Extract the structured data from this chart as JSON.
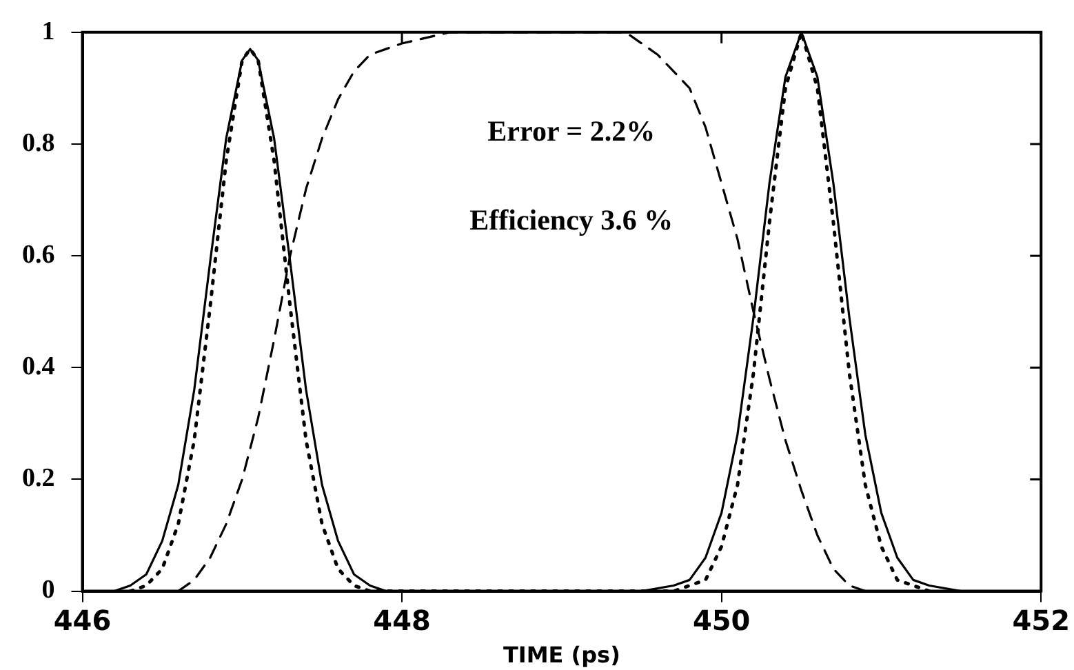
{
  "chart_data": {
    "type": "line",
    "xlabel": "TIME (ps)",
    "xlim": [
      446,
      452
    ],
    "xticks": [
      446,
      448,
      450,
      452
    ],
    "ylim": [
      0,
      1
    ],
    "yticks": [
      0,
      0.2,
      0.4,
      0.6,
      0.8,
      1
    ],
    "grid": false,
    "legend": false,
    "marker": "none",
    "annotations": [
      "Error = 2.2%",
      "Efficiency 3.6 %"
    ],
    "series": [
      {
        "color": "#000000",
        "line_style": "solid",
        "x": [
          446.2,
          446.3,
          446.4,
          446.5,
          446.6,
          446.7,
          446.8,
          446.9,
          447.0,
          447.05,
          447.1,
          447.2,
          447.3,
          447.4,
          447.5,
          447.6,
          447.7,
          447.8,
          447.9,
          448.0,
          449.5,
          449.7,
          449.8,
          449.9,
          450.0,
          450.1,
          450.2,
          450.3,
          450.4,
          450.5,
          450.6,
          450.7,
          450.8,
          450.9,
          451.0,
          451.1,
          451.2,
          451.3,
          451.5
        ],
        "values": [
          0,
          0.01,
          0.03,
          0.09,
          0.19,
          0.36,
          0.59,
          0.81,
          0.95,
          0.97,
          0.95,
          0.81,
          0.59,
          0.36,
          0.19,
          0.09,
          0.03,
          0.01,
          0,
          0,
          0,
          0.01,
          0.02,
          0.06,
          0.14,
          0.28,
          0.49,
          0.73,
          0.92,
          1,
          0.92,
          0.73,
          0.49,
          0.28,
          0.14,
          0.06,
          0.02,
          0.01,
          0
        ]
      },
      {
        "color": "#000000",
        "line_style": "dotted",
        "x": [
          446.3,
          446.4,
          446.5,
          446.6,
          446.7,
          446.8,
          446.9,
          447.0,
          447.05,
          447.1,
          447.2,
          447.3,
          447.4,
          447.5,
          447.6,
          447.7,
          447.8,
          449.7,
          449.8,
          449.9,
          450.0,
          450.1,
          450.2,
          450.3,
          450.4,
          450.5,
          450.6,
          450.7,
          450.8,
          450.9,
          451.0,
          451.1,
          451.2,
          451.3
        ],
        "values": [
          0,
          0.01,
          0.04,
          0.12,
          0.27,
          0.51,
          0.77,
          0.95,
          0.97,
          0.95,
          0.77,
          0.51,
          0.27,
          0.12,
          0.04,
          0.01,
          0,
          0,
          0.01,
          0.02,
          0.08,
          0.19,
          0.39,
          0.66,
          0.9,
          1,
          0.9,
          0.66,
          0.39,
          0.19,
          0.08,
          0.02,
          0.01,
          0
        ]
      },
      {
        "color": "#000000",
        "line_style": "dashed",
        "x": [
          446.6,
          446.7,
          446.8,
          446.9,
          447.0,
          447.1,
          447.2,
          447.3,
          447.4,
          447.5,
          447.6,
          447.7,
          447.8,
          448.0,
          448.3,
          449.4,
          449.6,
          449.8,
          449.9,
          450.0,
          450.1,
          450.2,
          450.3,
          450.4,
          450.5,
          450.6,
          450.7,
          450.8,
          450.9
        ],
        "values": [
          0,
          0.02,
          0.06,
          0.12,
          0.2,
          0.31,
          0.45,
          0.6,
          0.72,
          0.81,
          0.88,
          0.93,
          0.96,
          0.98,
          1,
          1,
          0.96,
          0.9,
          0.83,
          0.73,
          0.63,
          0.5,
          0.38,
          0.27,
          0.18,
          0.1,
          0.04,
          0.01,
          0
        ]
      }
    ]
  }
}
